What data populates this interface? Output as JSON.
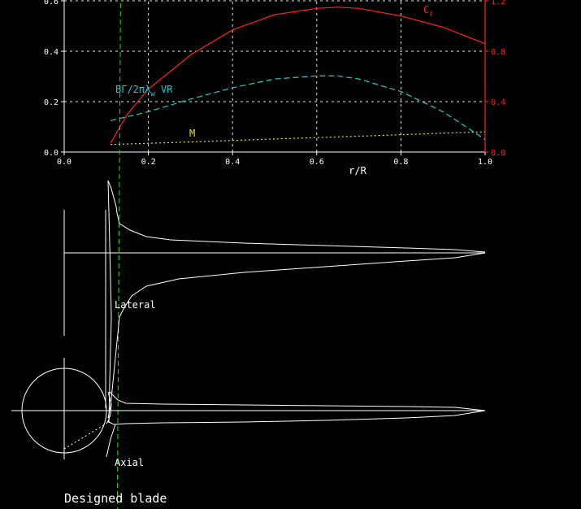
{
  "chart_data": {
    "type": "line",
    "xlabel": "r/R",
    "xlim": [
      0.0,
      1.0
    ],
    "x_ticks": [
      "0.0",
      "0.2",
      "0.4",
      "0.6",
      "0.8",
      "1.0"
    ],
    "ylim_left": [
      0.0,
      0.6
    ],
    "y_ticks_left": [
      "0.0",
      "0.2",
      "0.4",
      "0.6"
    ],
    "ylim_right": [
      0.0,
      1.2
    ],
    "y_ticks_right": [
      "0.0",
      "0.4",
      "0.8",
      "1.2"
    ],
    "grid": true,
    "vertical_marker_x": 0.13,
    "series": [
      {
        "name": "C",
        "name_subscript": "ℓ",
        "axis": "right",
        "color": "#ff2020",
        "style": "solid",
        "x": [
          0.11,
          0.15,
          0.2,
          0.3,
          0.4,
          0.5,
          0.6,
          0.65,
          0.7,
          0.8,
          0.9,
          1.0
        ],
        "y": [
          0.07,
          0.3,
          0.5,
          0.77,
          0.97,
          1.09,
          1.14,
          1.15,
          1.14,
          1.08,
          0.99,
          0.86
        ]
      },
      {
        "name": "BΓ/2πλ",
        "name_subscript": "w",
        "name_suffix": " VR",
        "axis": "left",
        "color": "#22cccc",
        "style": "dashed",
        "x": [
          0.11,
          0.2,
          0.3,
          0.4,
          0.5,
          0.6,
          0.65,
          0.7,
          0.8,
          0.9,
          0.95,
          1.0
        ],
        "y": [
          0.125,
          0.16,
          0.21,
          0.255,
          0.29,
          0.302,
          0.302,
          0.29,
          0.24,
          0.16,
          0.105,
          0.05
        ]
      },
      {
        "name": "M",
        "axis": "left",
        "color": "#e8e020",
        "style": "dotted",
        "x": [
          0.11,
          0.3,
          0.5,
          0.7,
          0.9,
          1.0
        ],
        "y": [
          0.03,
          0.04,
          0.052,
          0.063,
          0.075,
          0.08
        ]
      }
    ]
  },
  "views": {
    "lateral_label": "Lateral",
    "axial_label": "Axial",
    "caption": "Designed blade"
  }
}
